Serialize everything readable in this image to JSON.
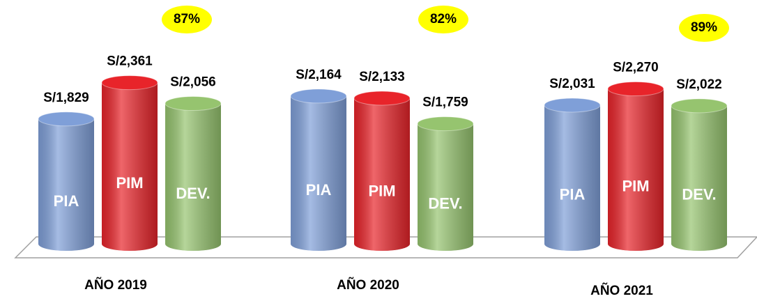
{
  "chart_data": {
    "type": "bar3d",
    "categories": [
      "AÑO 2019",
      "AÑO 2020",
      "AÑO 2021"
    ],
    "series": [
      {
        "name": "PIA",
        "color": "#7f9fd8",
        "values": [
          1829,
          2164,
          2031
        ],
        "value_labels": [
          "S/1,829",
          "S/2,164",
          "S/2,031"
        ]
      },
      {
        "name": "PIM",
        "color": "#e8242a",
        "values": [
          2361,
          2133,
          2270
        ],
        "value_labels": [
          "S/2,361",
          "S/2,133",
          "S/2,270"
        ]
      },
      {
        "name": "DEV.",
        "color": "#96c46f",
        "values": [
          2056,
          1759,
          2022
        ],
        "value_labels": [
          "S/2,056",
          "S/1,759",
          "S/2,022"
        ]
      }
    ],
    "percentages": {
      "values": [
        87,
        82,
        89
      ],
      "value_labels": [
        "87%",
        "82%",
        "89%"
      ]
    },
    "ylim": [
      0,
      2500
    ]
  }
}
